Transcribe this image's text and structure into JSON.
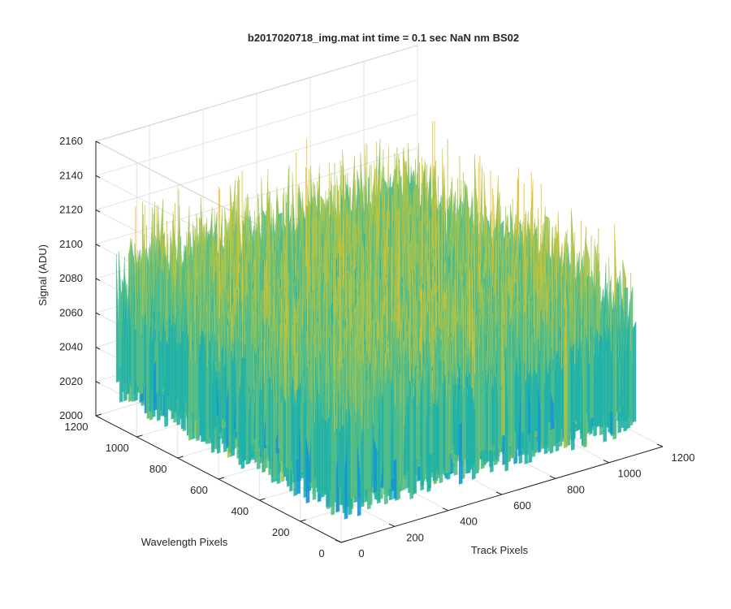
{
  "chart_data": {
    "type": "surface",
    "title": "b2017020718_img.mat int time = 0.1 sec  NaN nm BS02",
    "xlabel": "Track Pixels",
    "ylabel": "Wavelength Pixels",
    "zlabel": "Signal (ADU)",
    "xlim": [
      0,
      1200
    ],
    "ylim": [
      0,
      1200
    ],
    "zlim": [
      2000,
      2160
    ],
    "x_ticks": [
      "0",
      "200",
      "400",
      "600",
      "800",
      "1000",
      "1200"
    ],
    "y_ticks": [
      "0",
      "200",
      "400",
      "600",
      "800",
      "1000",
      "1200"
    ],
    "z_ticks": [
      "2000",
      "2020",
      "2040",
      "2060",
      "2080",
      "2100",
      "2120",
      "2140",
      "2160"
    ],
    "x_extent": [
      0,
      1100
    ],
    "y_extent": [
      0,
      1100
    ],
    "mean_signal": 2075,
    "noise_range": [
      2005,
      2155
    ],
    "grid": true,
    "colormap": [
      "#0072bd",
      "#1596d4",
      "#20b2aa",
      "#52bd8a",
      "#a8c44d",
      "#e6c028"
    ],
    "view": "3d-default"
  }
}
